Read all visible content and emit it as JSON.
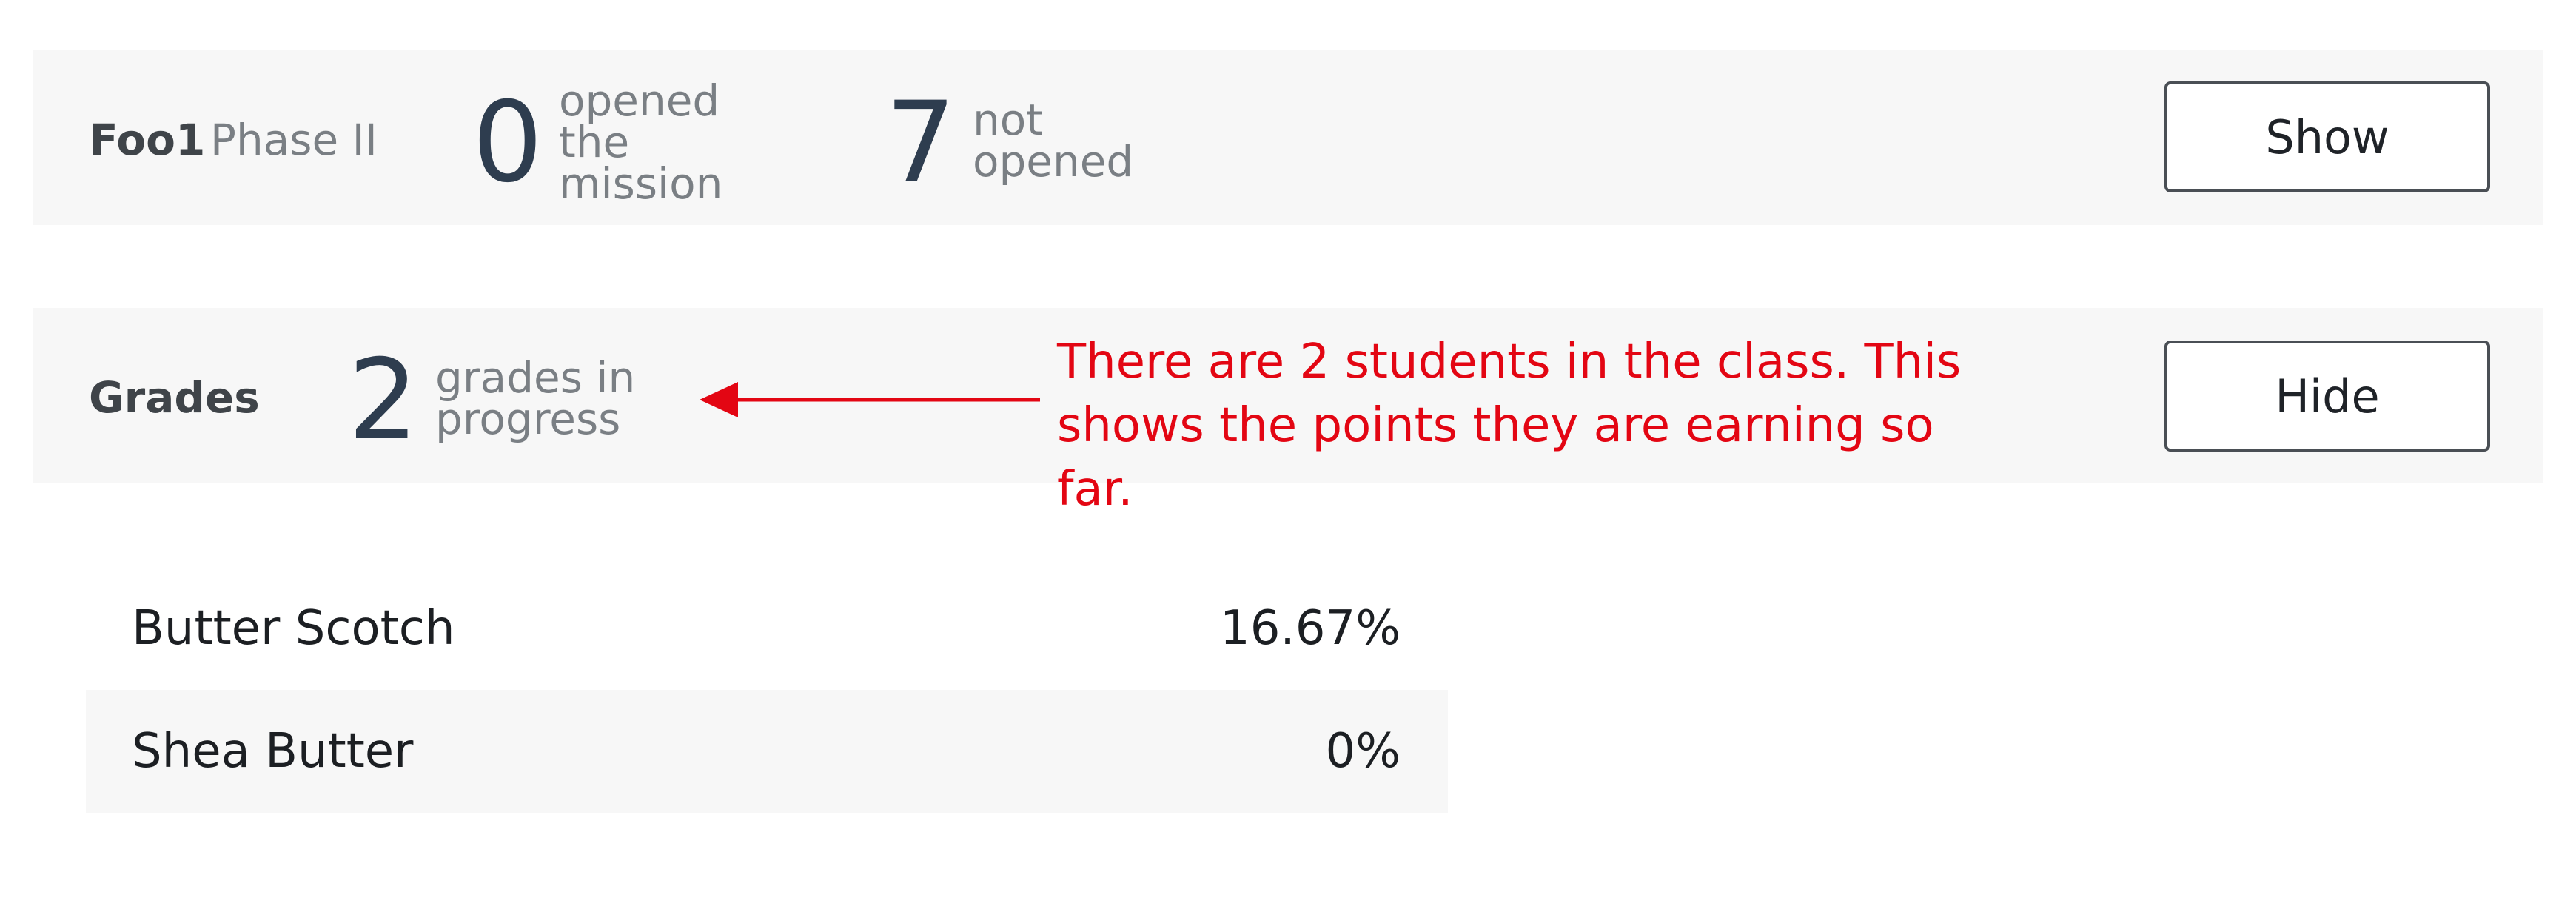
{
  "mission": {
    "name": "Foo1",
    "phase": "Phase II",
    "opened_count": "0",
    "opened_label_lines": [
      "opened",
      "the",
      "mission"
    ],
    "not_opened_count": "7",
    "not_opened_label_lines": [
      "not",
      "opened"
    ],
    "toggle_label": "Show"
  },
  "grades": {
    "title": "Grades",
    "in_progress_count": "2",
    "in_progress_label_lines": [
      "grades in",
      "progress"
    ],
    "toggle_label": "Hide",
    "students": [
      {
        "name": "Butter Scotch",
        "percent": "16.67%"
      },
      {
        "name": "Shea Butter",
        "percent": "0%"
      }
    ]
  },
  "annotation": {
    "lines": [
      "There are 2 students in the class. This",
      "shows the points they are earning so far."
    ],
    "color": "#e30613"
  }
}
